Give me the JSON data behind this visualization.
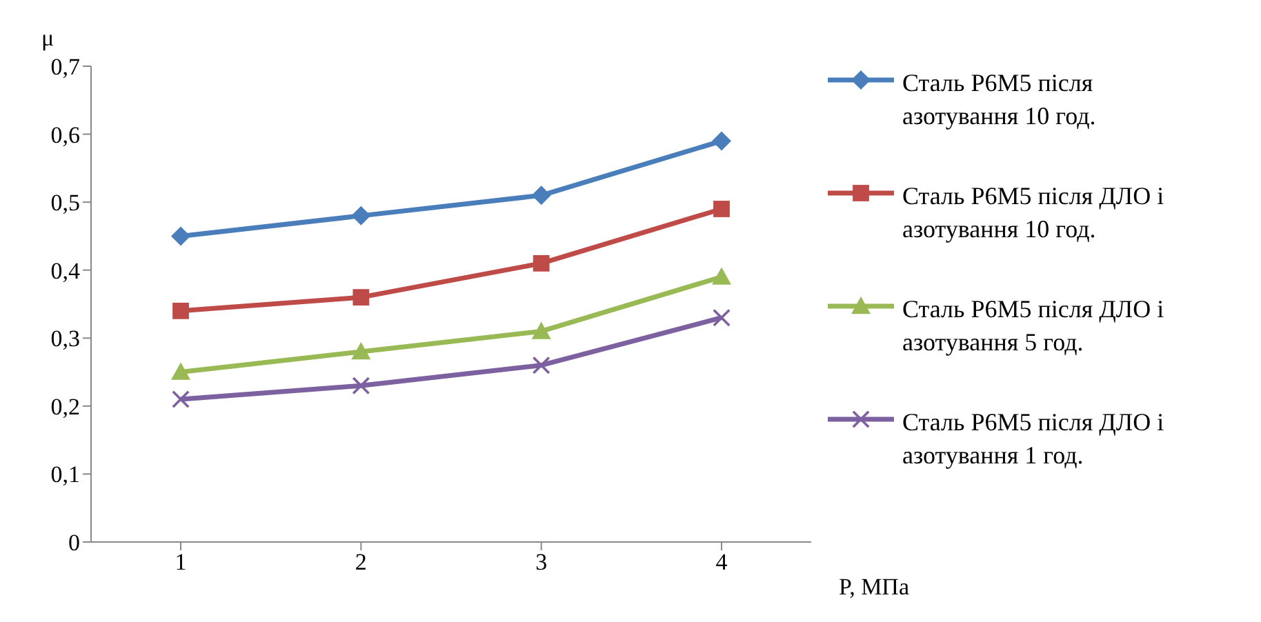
{
  "chart_data": {
    "type": "line",
    "ylabel": "μ",
    "xlabel": "P, МПа",
    "categories": [
      "1",
      "2",
      "3",
      "4"
    ],
    "series": [
      {
        "name": "Сталь Р6М5 після азотування 10 год.",
        "color": "#4a7ebb",
        "marker": "diamond",
        "values": [
          0.45,
          0.48,
          0.51,
          0.59
        ]
      },
      {
        "name": "Сталь Р6М5 після ДЛО і азотування 10 год.",
        "color": "#be4b48",
        "marker": "square",
        "values": [
          0.34,
          0.36,
          0.41,
          0.49
        ]
      },
      {
        "name": "Сталь Р6М5 після ДЛО і азотування 5 год.",
        "color": "#98b954",
        "marker": "triangle",
        "values": [
          0.25,
          0.28,
          0.31,
          0.39
        ]
      },
      {
        "name": "Сталь Р6М5 після ДЛО і азотування 1 год.",
        "color": "#7d60a0",
        "marker": "cross",
        "values": [
          0.21,
          0.23,
          0.26,
          0.33
        ]
      }
    ],
    "ylim": [
      0,
      0.7
    ],
    "yticks": [
      0,
      {
        "value": 0.1,
        "label": "0,1"
      },
      {
        "value": 0.2,
        "label": "0,2"
      },
      {
        "value": 0.3,
        "label": "0,3"
      },
      {
        "value": 0.4,
        "label": "0,4"
      },
      {
        "value": 0.5,
        "label": "0,5"
      },
      {
        "value": 0.6,
        "label": "0,6"
      },
      {
        "value": 0.7,
        "label": "0,7"
      }
    ],
    "grid": false,
    "legend": "right",
    "line_style": "solid"
  }
}
